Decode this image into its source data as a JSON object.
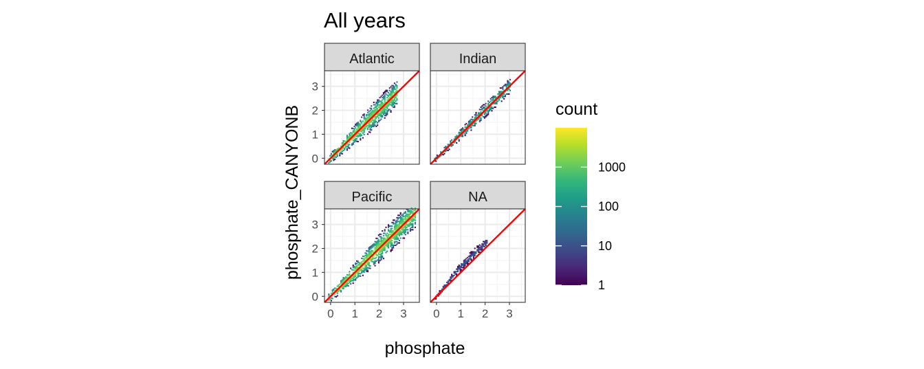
{
  "chart_data": {
    "type": "heatmap",
    "title": "All years",
    "xlabel": "phosphate",
    "ylabel": "phosphate_CANYONB",
    "xlim": [
      -0.25,
      3.65
    ],
    "ylim": [
      -0.25,
      3.65
    ],
    "x_ticks": [
      "0",
      "1",
      "2",
      "3"
    ],
    "y_ticks": [
      "0",
      "1",
      "2",
      "3"
    ],
    "facets": [
      {
        "label": "Atlantic",
        "max_x": 2.7,
        "spread": 0.55,
        "min_count": 1,
        "max_count": 5000
      },
      {
        "label": "Indian",
        "max_x": 3.0,
        "spread": 0.3,
        "min_count": 1,
        "max_count": 1500
      },
      {
        "label": "Pacific",
        "max_x": 3.45,
        "spread": 0.6,
        "min_count": 1,
        "max_count": 6000
      },
      {
        "label": "NA",
        "max_x": 2.1,
        "spread": 0.2,
        "min_count": 1,
        "max_count": 30,
        "offset": 0.3
      }
    ],
    "reference_line": {
      "slope": 1,
      "intercept": 0,
      "color": "#ff0000"
    },
    "legend": {
      "title": "count",
      "scale": "log",
      "labels": [
        "1",
        "10",
        "100",
        "1000"
      ],
      "values": [
        1,
        10,
        100,
        1000
      ],
      "range": [
        1,
        10000
      ],
      "colormap": [
        "#440154",
        "#482878",
        "#3e4a89",
        "#31688e",
        "#26828e",
        "#1f9e89",
        "#35b779",
        "#6ece58",
        "#b5de2b",
        "#fde725"
      ],
      "position": "right"
    },
    "grid": true
  }
}
